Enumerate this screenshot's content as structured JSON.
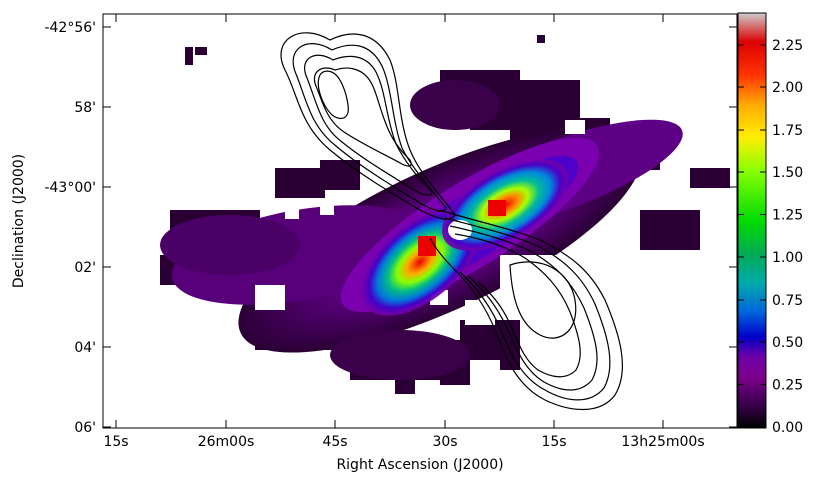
{
  "figure": {
    "x_axis_label": "Right Ascension (J2000)",
    "y_axis_label": "Declination (J2000)",
    "x_ticks": [
      "15s",
      "26m00s",
      "45s",
      "30s",
      "15s",
      "13h25m00s"
    ],
    "y_ticks": [
      "-42°56'",
      "58'",
      "-43°00'",
      "02'",
      "04'",
      "06'"
    ]
  },
  "colorbar": {
    "ticks": [
      "0.00",
      "0.25",
      "0.50",
      "0.75",
      "1.00",
      "1.25",
      "1.50",
      "1.75",
      "2.00",
      "2.25"
    ],
    "range": [
      0.0,
      2.44
    ],
    "colormap": "spectral",
    "colors": [
      "#000000",
      "#3b0050",
      "#7d008c",
      "#6f00a6",
      "#0000c8",
      "#0066dd",
      "#00aaaa",
      "#00aa55",
      "#00dd00",
      "#88ff00",
      "#ffee00",
      "#ffaa00",
      "#ff3300",
      "#dd0000",
      "#cccccc"
    ]
  },
  "overlays": {
    "contour_color": "#000000",
    "background_color": "#ffffff"
  }
}
